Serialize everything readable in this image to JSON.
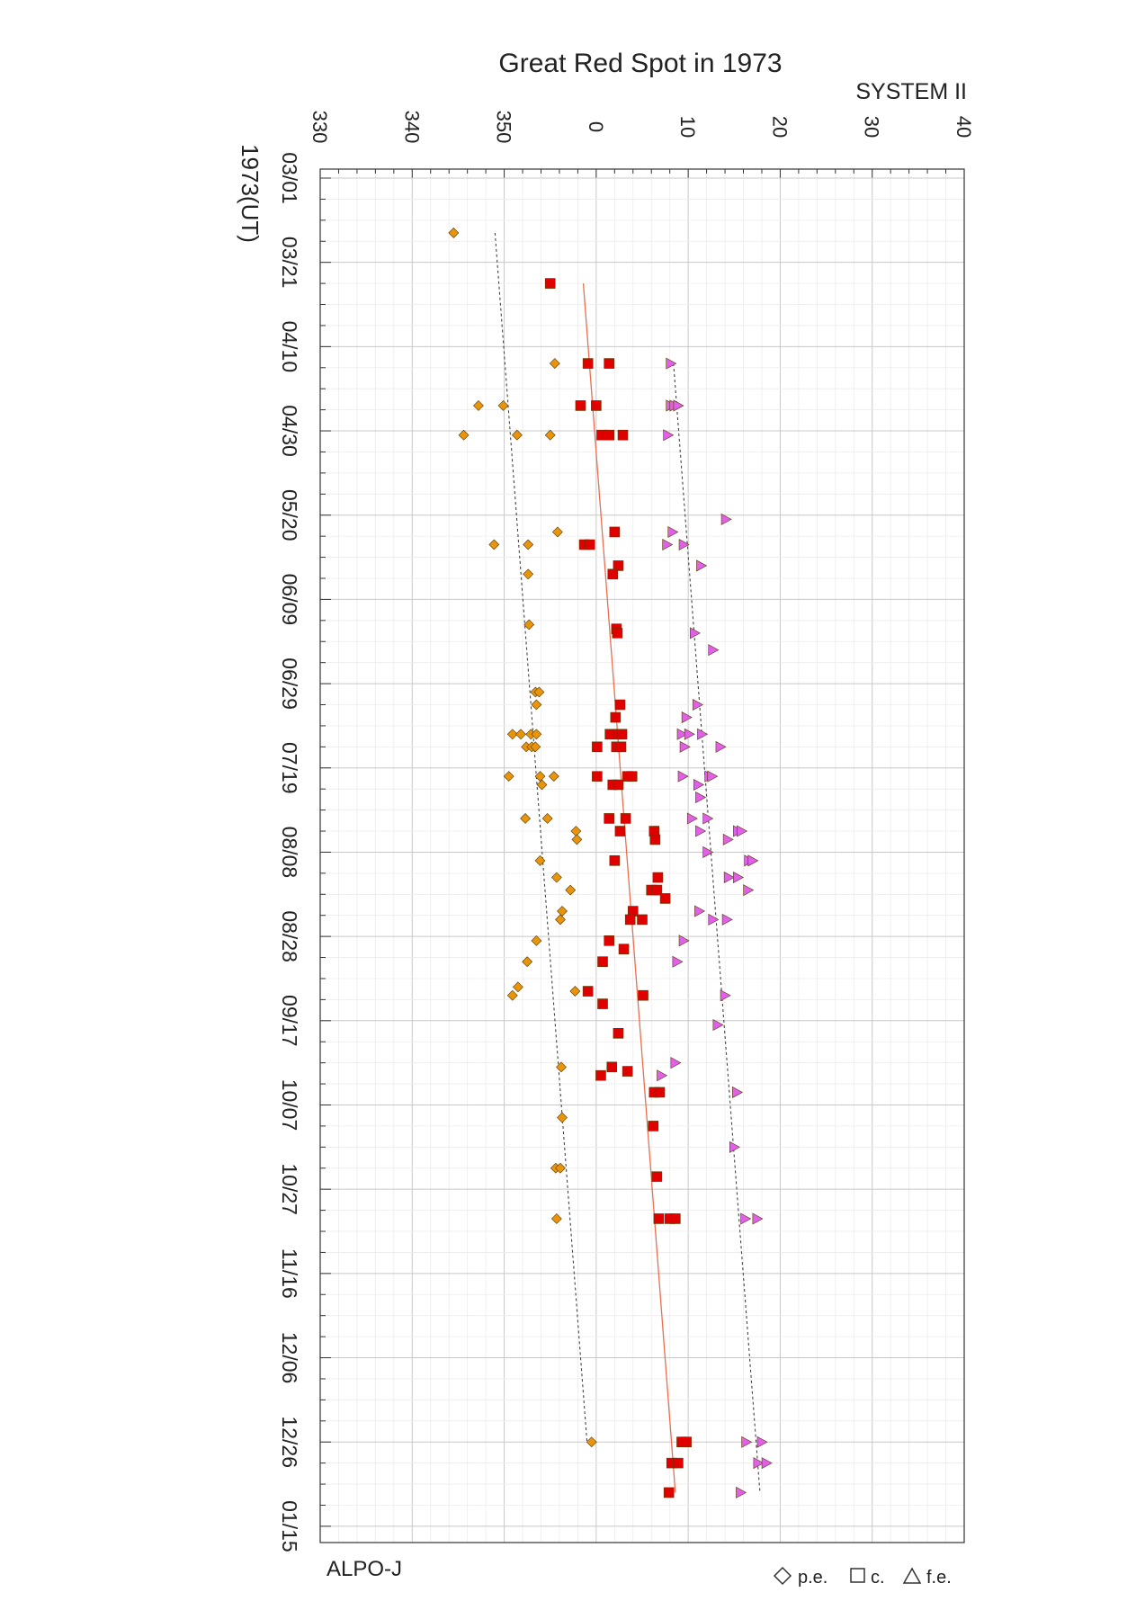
{
  "chart_data": {
    "type": "scatter",
    "title": "Great Red Spot in 1973",
    "system_label": "SYSTEM II",
    "date_axis_label": "1973(UT)",
    "source_label": "ALPO-J",
    "legend": [
      {
        "symbol": "diamond",
        "label": "p.e."
      },
      {
        "symbol": "square",
        "label": "c."
      },
      {
        "symbol": "triangle",
        "label": "f.e."
      }
    ],
    "longitude_ticks": [
      "330",
      "340",
      "350",
      "0",
      "10",
      "20",
      "30",
      "40"
    ],
    "longitude_range": [
      330,
      40
    ],
    "date_ticks": [
      "03/01",
      "03/21",
      "04/10",
      "04/30",
      "05/20",
      "06/09",
      "06/29",
      "07/19",
      "08/08",
      "08/28",
      "09/17",
      "10/07",
      "10/27",
      "11/16",
      "12/06",
      "12/26",
      "01/15"
    ],
    "date_range": [
      "1973-03-01",
      "1974-01-15"
    ],
    "colors": {
      "pe": "#e8940c",
      "c": "#e00000",
      "fe": "#e060e8",
      "trend_c": "#e87050",
      "trend_edges": "#444444",
      "grid_major": "#c8c8c8",
      "grid_minor": "#ececec"
    },
    "series": [
      {
        "name": "p.e.",
        "symbol": "diamond",
        "points": [
          [
            "1973-03-14",
            344.5
          ],
          [
            "1973-04-14",
            355.5
          ],
          [
            "1973-04-24",
            347.2
          ],
          [
            "1973-04-24",
            349.9
          ],
          [
            "1973-05-01",
            345.6
          ],
          [
            "1973-05-01",
            351.4
          ],
          [
            "1973-05-01",
            355.0
          ],
          [
            "1973-05-24",
            355.8
          ],
          [
            "1973-05-27",
            348.9
          ],
          [
            "1973-05-27",
            352.6
          ],
          [
            "1973-06-03",
            352.6
          ],
          [
            "1973-06-15",
            352.7
          ],
          [
            "1973-07-01",
            353.4
          ],
          [
            "1973-07-01",
            353.8
          ],
          [
            "1973-07-04",
            353.5
          ],
          [
            "1973-07-11",
            350.9
          ],
          [
            "1973-07-11",
            351.8
          ],
          [
            "1973-07-11",
            352.9
          ],
          [
            "1973-07-11",
            353.5
          ],
          [
            "1973-07-14",
            352.4
          ],
          [
            "1973-07-14",
            353.0
          ],
          [
            "1973-07-14",
            353.4
          ],
          [
            "1973-07-21",
            350.5
          ],
          [
            "1973-07-21",
            353.9
          ],
          [
            "1973-07-21",
            355.4
          ],
          [
            "1973-07-23",
            354.1
          ],
          [
            "1973-07-31",
            352.3
          ],
          [
            "1973-07-31",
            354.7
          ],
          [
            "1973-08-03",
            357.8
          ],
          [
            "1973-08-05",
            357.9
          ],
          [
            "1973-08-10",
            353.9
          ],
          [
            "1973-08-14",
            355.7
          ],
          [
            "1973-08-17",
            357.2
          ],
          [
            "1973-08-22",
            356.3
          ],
          [
            "1973-08-24",
            356.1
          ],
          [
            "1973-08-29",
            353.5
          ],
          [
            "1973-09-03",
            352.5
          ],
          [
            "1973-09-09",
            351.5
          ],
          [
            "1973-09-10",
            357.7
          ],
          [
            "1973-09-11",
            350.9
          ],
          [
            "1973-09-28",
            356.2
          ],
          [
            "1973-10-10",
            356.3
          ],
          [
            "1973-10-22",
            355.6
          ],
          [
            "1973-10-22",
            356.1
          ],
          [
            "1973-11-03",
            355.7
          ],
          [
            "1973-12-26",
            359.5
          ]
        ]
      },
      {
        "name": "c.",
        "symbol": "square",
        "points": [
          [
            "1973-03-26",
            355.0
          ],
          [
            "1973-04-14",
            359.1
          ],
          [
            "1973-04-14",
            1.4
          ],
          [
            "1973-04-24",
            358.3
          ],
          [
            "1973-04-24",
            0.0
          ],
          [
            "1973-05-01",
            0.6
          ],
          [
            "1973-05-01",
            1.4
          ],
          [
            "1973-05-01",
            2.9
          ],
          [
            "1973-05-24",
            2.0
          ],
          [
            "1973-05-27",
            358.7
          ],
          [
            "1973-05-27",
            359.3
          ],
          [
            "1973-06-01",
            2.4
          ],
          [
            "1973-06-03",
            1.8
          ],
          [
            "1973-06-16",
            2.2
          ],
          [
            "1973-06-17",
            2.3
          ],
          [
            "1973-07-04",
            2.6
          ],
          [
            "1973-07-07",
            2.1
          ],
          [
            "1973-07-11",
            1.5
          ],
          [
            "1973-07-11",
            2.4
          ],
          [
            "1973-07-11",
            2.8
          ],
          [
            "1973-07-14",
            0.1
          ],
          [
            "1973-07-14",
            2.2
          ],
          [
            "1973-07-14",
            2.7
          ],
          [
            "1973-07-21",
            0.1
          ],
          [
            "1973-07-21",
            3.4
          ],
          [
            "1973-07-21",
            3.9
          ],
          [
            "1973-07-23",
            1.8
          ],
          [
            "1973-07-23",
            2.4
          ],
          [
            "1973-07-31",
            1.4
          ],
          [
            "1973-07-31",
            3.2
          ],
          [
            "1973-08-03",
            2.6
          ],
          [
            "1973-08-03",
            6.3
          ],
          [
            "1973-08-05",
            6.4
          ],
          [
            "1973-08-10",
            2.0
          ],
          [
            "1973-08-14",
            6.7
          ],
          [
            "1973-08-17",
            6.0
          ],
          [
            "1973-08-17",
            6.6
          ],
          [
            "1973-08-19",
            7.5
          ],
          [
            "1973-08-22",
            4.0
          ],
          [
            "1973-08-24",
            3.7
          ],
          [
            "1973-08-24",
            5.0
          ],
          [
            "1973-08-29",
            1.4
          ],
          [
            "1973-08-31",
            3.0
          ],
          [
            "1973-09-03",
            0.7
          ],
          [
            "1973-09-10",
            359.1
          ],
          [
            "1973-09-11",
            5.1
          ],
          [
            "1973-09-13",
            0.7
          ],
          [
            "1973-09-20",
            2.4
          ],
          [
            "1973-09-28",
            1.7
          ],
          [
            "1973-09-29",
            3.4
          ],
          [
            "1973-09-30",
            0.5
          ],
          [
            "1973-10-04",
            6.3
          ],
          [
            "1973-10-04",
            6.9
          ],
          [
            "1973-10-12",
            6.2
          ],
          [
            "1973-10-24",
            6.6
          ],
          [
            "1973-11-03",
            6.8
          ],
          [
            "1973-11-03",
            8.0
          ],
          [
            "1973-11-03",
            8.6
          ],
          [
            "1973-12-26",
            9.3
          ],
          [
            "1973-12-26",
            9.8
          ],
          [
            "1973-12-31",
            8.2
          ],
          [
            "1973-12-31",
            8.9
          ],
          [
            "1974-01-07",
            7.9
          ]
        ]
      },
      {
        "name": "f.e.",
        "symbol": "triangle",
        "points": [
          [
            "1973-04-14",
            8.1
          ],
          [
            "1973-04-24",
            8.1
          ],
          [
            "1973-04-24",
            8.5
          ],
          [
            "1973-04-24",
            8.9
          ],
          [
            "1973-05-01",
            7.8
          ],
          [
            "1973-05-21",
            14.1
          ],
          [
            "1973-05-24",
            8.3
          ],
          [
            "1973-05-27",
            7.7
          ],
          [
            "1973-05-27",
            9.5
          ],
          [
            "1973-06-01",
            11.4
          ],
          [
            "1973-06-17",
            10.7
          ],
          [
            "1973-06-21",
            12.7
          ],
          [
            "1973-07-04",
            11.0
          ],
          [
            "1973-07-07",
            9.8
          ],
          [
            "1973-07-11",
            9.3
          ],
          [
            "1973-07-11",
            10.1
          ],
          [
            "1973-07-11",
            11.5
          ],
          [
            "1973-07-14",
            9.6
          ],
          [
            "1973-07-14",
            13.5
          ],
          [
            "1973-07-21",
            9.4
          ],
          [
            "1973-07-21",
            12.3
          ],
          [
            "1973-07-21",
            12.6
          ],
          [
            "1973-07-23",
            11.1
          ],
          [
            "1973-07-26",
            11.3
          ],
          [
            "1973-07-31",
            10.4
          ],
          [
            "1973-07-31",
            12.1
          ],
          [
            "1973-08-03",
            11.3
          ],
          [
            "1973-08-03",
            15.4
          ],
          [
            "1973-08-03",
            15.8
          ],
          [
            "1973-08-05",
            14.3
          ],
          [
            "1973-08-08",
            12.1
          ],
          [
            "1973-08-10",
            16.6
          ],
          [
            "1973-08-10",
            17.0
          ],
          [
            "1973-08-14",
            14.4
          ],
          [
            "1973-08-14",
            15.4
          ],
          [
            "1973-08-17",
            16.5
          ],
          [
            "1973-08-22",
            11.2
          ],
          [
            "1973-08-24",
            12.7
          ],
          [
            "1973-08-24",
            14.2
          ],
          [
            "1973-08-29",
            9.5
          ],
          [
            "1973-09-03",
            8.8
          ],
          [
            "1973-09-11",
            14.0
          ],
          [
            "1973-09-18",
            13.2
          ],
          [
            "1973-09-27",
            8.6
          ],
          [
            "1973-09-30",
            7.1
          ],
          [
            "1973-10-04",
            15.3
          ],
          [
            "1973-10-17",
            15.0
          ],
          [
            "1973-11-03",
            16.2
          ],
          [
            "1973-11-03",
            17.5
          ],
          [
            "1973-12-26",
            16.3
          ],
          [
            "1973-12-26",
            18.0
          ],
          [
            "1973-12-31",
            17.6
          ],
          [
            "1973-12-31",
            18.5
          ],
          [
            "1974-01-07",
            15.7
          ]
        ]
      }
    ],
    "trend_lines": [
      {
        "name": "p.e.",
        "start": [
          "1973-03-14",
          349.0
        ],
        "end": [
          "1973-12-26",
          359.0
        ]
      },
      {
        "name": "c.",
        "start": [
          "1973-03-26",
          358.6
        ],
        "end": [
          "1974-01-07",
          8.6
        ]
      },
      {
        "name": "f.e.",
        "start": [
          "1973-04-14",
          8.4
        ],
        "end": [
          "1974-01-07",
          17.8
        ]
      }
    ]
  }
}
